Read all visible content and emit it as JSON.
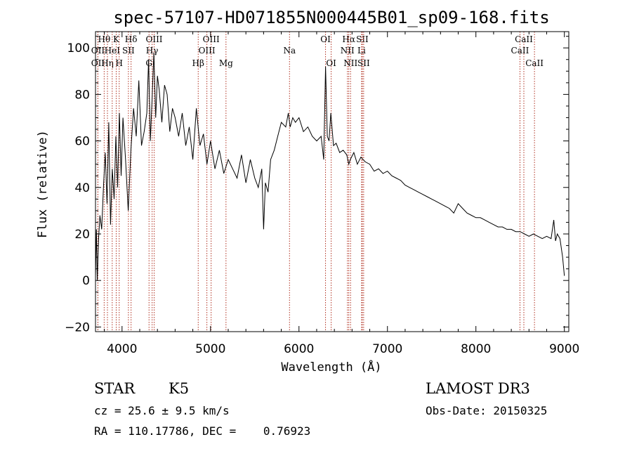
{
  "chart_data": {
    "type": "line",
    "title": "spec-57107-HD071855N000445B01_sp09-168.fits",
    "xlabel": "Wavelength (Å)",
    "ylabel": "Flux (relative)",
    "xlim": [
      3700,
      9050
    ],
    "ylim": [
      -22,
      107
    ],
    "xticks": [
      4000,
      5000,
      6000,
      7000,
      8000,
      9000
    ],
    "yticks": [
      -20,
      0,
      20,
      40,
      60,
      80,
      100
    ],
    "tick_labels_x": [
      "4000",
      "5000",
      "6000",
      "7000",
      "8000",
      "9000"
    ],
    "tick_labels_y": [
      "−20",
      "0",
      "20",
      "40",
      "60",
      "80",
      "100"
    ],
    "series": [
      {
        "name": "flux",
        "x": [
          3700,
          3710,
          3720,
          3735,
          3750,
          3770,
          3790,
          3810,
          3830,
          3850,
          3870,
          3890,
          3910,
          3930,
          3950,
          3970,
          3990,
          4010,
          4040,
          4070,
          4100,
          4130,
          4160,
          4190,
          4220,
          4250,
          4280,
          4300,
          4320,
          4340,
          4360,
          4380,
          4400,
          4420,
          4450,
          4480,
          4510,
          4540,
          4570,
          4600,
          4640,
          4680,
          4720,
          4760,
          4800,
          4840,
          4880,
          4920,
          4960,
          5000,
          5050,
          5100,
          5150,
          5200,
          5250,
          5300,
          5350,
          5400,
          5450,
          5500,
          5540,
          5580,
          5600,
          5620,
          5650,
          5680,
          5720,
          5760,
          5800,
          5850,
          5880,
          5900,
          5930,
          5960,
          6000,
          6050,
          6100,
          6150,
          6200,
          6250,
          6280,
          6300,
          6320,
          6340,
          6360,
          6390,
          6420,
          6460,
          6500,
          6540,
          6563,
          6580,
          6620,
          6660,
          6700,
          6750,
          6800,
          6850,
          6900,
          6950,
          7000,
          7050,
          7100,
          7150,
          7200,
          7250,
          7300,
          7350,
          7400,
          7450,
          7500,
          7550,
          7600,
          7650,
          7700,
          7750,
          7800,
          7850,
          7900,
          7950,
          8000,
          8050,
          8100,
          8150,
          8200,
          8250,
          8300,
          8350,
          8400,
          8450,
          8500,
          8550,
          8600,
          8650,
          8700,
          8750,
          8800,
          8850,
          8880,
          8900,
          8920,
          8950,
          8980,
          9000
        ],
        "y": [
          2,
          22,
          0,
          18,
          28,
          22,
          40,
          55,
          33,
          68,
          24,
          48,
          35,
          62,
          40,
          72,
          45,
          70,
          52,
          30,
          56,
          74,
          62,
          86,
          58,
          64,
          72,
          95,
          60,
          78,
          98,
          70,
          88,
          82,
          68,
          84,
          80,
          64,
          74,
          70,
          62,
          72,
          58,
          66,
          52,
          74,
          58,
          63,
          50,
          60,
          48,
          56,
          46,
          52,
          48,
          44,
          54,
          42,
          52,
          44,
          40,
          48,
          22,
          42,
          38,
          52,
          56,
          62,
          68,
          66,
          72,
          66,
          70,
          68,
          70,
          64,
          66,
          62,
          60,
          62,
          52,
          92,
          62,
          60,
          72,
          58,
          59,
          55,
          56,
          54,
          50,
          52,
          55,
          50,
          53,
          51,
          50,
          47,
          48,
          46,
          47,
          45,
          44,
          43,
          41,
          40,
          39,
          38,
          37,
          36,
          35,
          34,
          33,
          32,
          31,
          29,
          33,
          31,
          29,
          28,
          27,
          27,
          26,
          25,
          24,
          23,
          23,
          22,
          22,
          21,
          21,
          20,
          19,
          20,
          19,
          18,
          19,
          18,
          26,
          17,
          20,
          18,
          10,
          2
        ]
      }
    ],
    "lines": [
      {
        "name": "OII",
        "wavelength": 3727,
        "row": 2
      },
      {
        "name": "Hθ",
        "wavelength": 3798,
        "row": 1
      },
      {
        "name": "OII",
        "wavelength": 3727,
        "row": 3
      },
      {
        "name": "Hη",
        "wavelength": 3835,
        "row": 3
      },
      {
        "name": "K",
        "wavelength": 3934,
        "row": 1
      },
      {
        "name": "HeI",
        "wavelength": 3889,
        "row": 2
      },
      {
        "name": "H",
        "wavelength": 3968,
        "row": 3
      },
      {
        "name": "SII",
        "wavelength": 4072,
        "row": 2
      },
      {
        "name": "Hδ",
        "wavelength": 4102,
        "row": 1
      },
      {
        "name": "OIII",
        "wavelength": 4363,
        "row": 1
      },
      {
        "name": "Hγ",
        "wavelength": 4340,
        "row": 2
      },
      {
        "name": "G",
        "wavelength": 4305,
        "row": 3
      },
      {
        "name": "OIII",
        "wavelength": 5007,
        "row": 1
      },
      {
        "name": "OIII",
        "wavelength": 4959,
        "row": 2
      },
      {
        "name": "Hβ",
        "wavelength": 4861,
        "row": 3
      },
      {
        "name": "Mg",
        "wavelength": 5175,
        "row": 3
      },
      {
        "name": "Na",
        "wavelength": 5893,
        "row": 2
      },
      {
        "name": "OI",
        "wavelength": 6300,
        "row": 1
      },
      {
        "name": "OI",
        "wavelength": 6364,
        "row": 3
      },
      {
        "name": "Hα",
        "wavelength": 6563,
        "row": 1
      },
      {
        "name": "NII",
        "wavelength": 6548,
        "row": 2
      },
      {
        "name": "NII",
        "wavelength": 6583,
        "row": 3
      },
      {
        "name": "SII",
        "wavelength": 6716,
        "row": 1
      },
      {
        "name": "Li",
        "wavelength": 6708,
        "row": 2
      },
      {
        "name": "SII",
        "wavelength": 6731,
        "row": 3
      },
      {
        "name": "CaII",
        "wavelength": 8542,
        "row": 1
      },
      {
        "name": "CaII",
        "wavelength": 8498,
        "row": 2
      },
      {
        "name": "CaII",
        "wavelength": 8662,
        "row": 3
      }
    ]
  },
  "info": {
    "class": "STAR",
    "subclass": "K5",
    "survey": "LAMOST DR3",
    "cz": "cz = 25.6 ± 9.5 km/s",
    "obs_date": "Obs-Date: 20150325",
    "coords": "RA = 110.17786, DEC =    0.76923"
  },
  "colors": {
    "spectrum": "#000000",
    "line_marker": "#b03020",
    "axis": "#000000"
  }
}
